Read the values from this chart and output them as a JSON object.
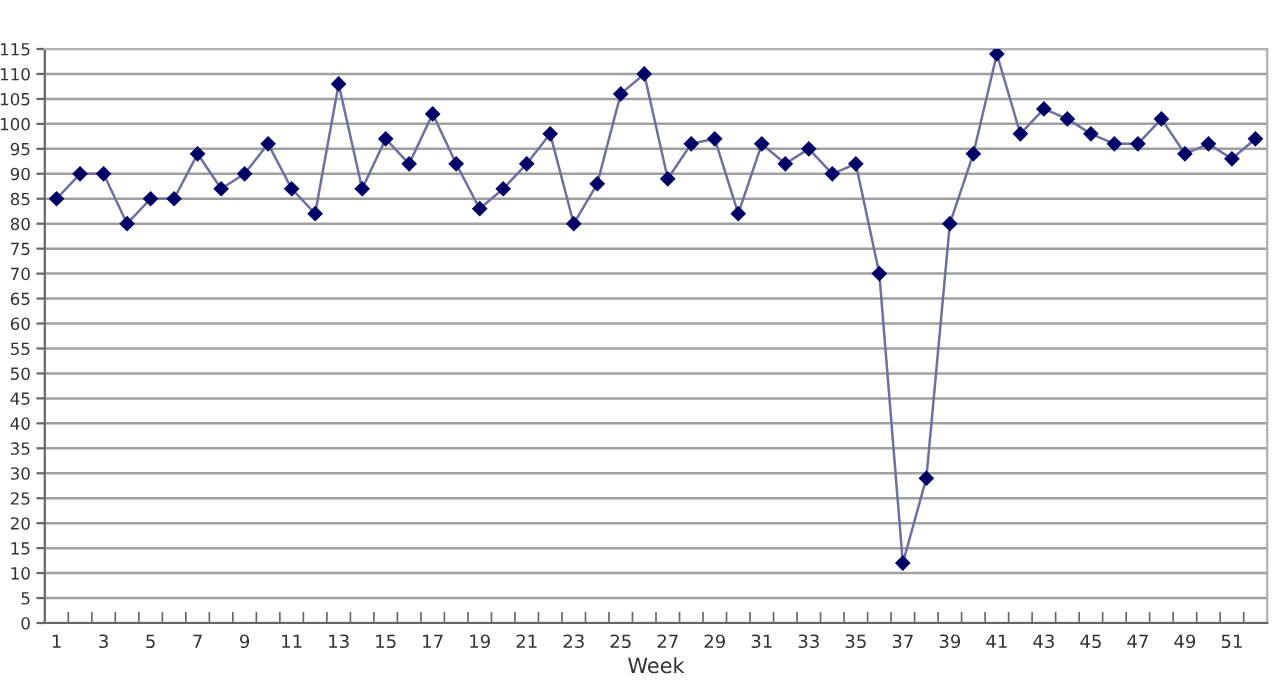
{
  "chart_data": {
    "type": "line",
    "xlabel": "Week",
    "categories": [
      "1",
      null,
      "3",
      null,
      "5",
      null,
      "7",
      null,
      "9",
      null,
      "11",
      null,
      "13",
      null,
      "15",
      null,
      "17",
      null,
      "19",
      null,
      "21",
      null,
      "23",
      null,
      "25",
      null,
      "27",
      null,
      "29",
      null,
      "31",
      null,
      "33",
      null,
      "35",
      null,
      "37",
      null,
      "39",
      null,
      "41",
      null,
      "43",
      null,
      "45",
      null,
      "47",
      null,
      "49",
      null,
      "51",
      null
    ],
    "series": [
      {
        "color": "#000066",
        "values": [
          85,
          90,
          90,
          80,
          85,
          85,
          94,
          87,
          90,
          96,
          87,
          82,
          108,
          87,
          97,
          92,
          102,
          92,
          83,
          87,
          92,
          98,
          80,
          88,
          106,
          110,
          89,
          96,
          97,
          82,
          96,
          92,
          95,
          90,
          92,
          70,
          12,
          29,
          80,
          94,
          114,
          98,
          103,
          101,
          98,
          96,
          96,
          101,
          94,
          96,
          93,
          97
        ]
      }
    ],
    "ylim": [
      0,
      115
    ],
    "yticks": [
      0,
      5,
      10,
      15,
      20,
      25,
      30,
      35,
      40,
      45,
      50,
      55,
      60,
      65,
      70,
      75,
      80,
      85,
      90,
      95,
      100,
      105,
      110,
      115
    ],
    "grid": "y",
    "marker": "diamond",
    "line_style": "solid",
    "legend": false
  }
}
